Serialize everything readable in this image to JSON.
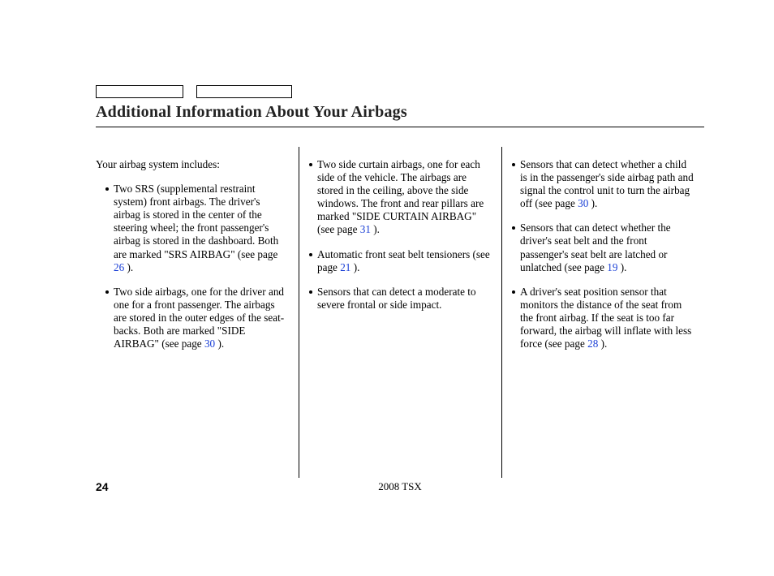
{
  "title": "Additional Information About Your Airbags",
  "intro": "Your airbag system includes:",
  "col1": {
    "i0a": "Two SRS (supplemental restraint system) front airbags. The driver's airbag is stored in the center of the steering wheel; the front passenger's airbag is stored in the dashboard. Both are marked \"SRS AIRBAG\" (see page ",
    "i0p": "26",
    "i0b": " ).",
    "i1a": "Two side airbags, one for the driver and one for a front passenger. The airbags are stored in the outer edges of the seat-backs. Both are marked \"SIDE AIRBAG\" (see page ",
    "i1p": "30",
    "i1b": " )."
  },
  "col2": {
    "i0a": "Two side curtain airbags, one for each side of the vehicle. The airbags are stored in the ceiling, above the side windows. The front and rear pillars are marked \"SIDE CURTAIN AIRBAG\" (see page ",
    "i0p": "31",
    "i0b": " ).",
    "i1a": "Automatic front seat belt tensioners (see page ",
    "i1p": "21",
    "i1b": " ).",
    "i2a": "Sensors that can detect a moderate to severe frontal or side impact."
  },
  "col3": {
    "i0a": "Sensors that can detect whether a child is in the passenger's side airbag path and signal the control unit to turn the airbag off (see page ",
    "i0p": "30",
    "i0b": " ).",
    "i1a": "Sensors that can detect whether the driver's seat belt and the front passenger's seat belt are latched or unlatched (see page ",
    "i1p": "19",
    "i1b": " ).",
    "i2a": "A driver's seat position sensor that monitors the distance of the seat from the front airbag. If the seat is too far forward, the airbag will inflate with less force (see page ",
    "i2p": "28",
    "i2b": " )."
  },
  "footer": {
    "page": "24",
    "model": "2008  TSX"
  }
}
